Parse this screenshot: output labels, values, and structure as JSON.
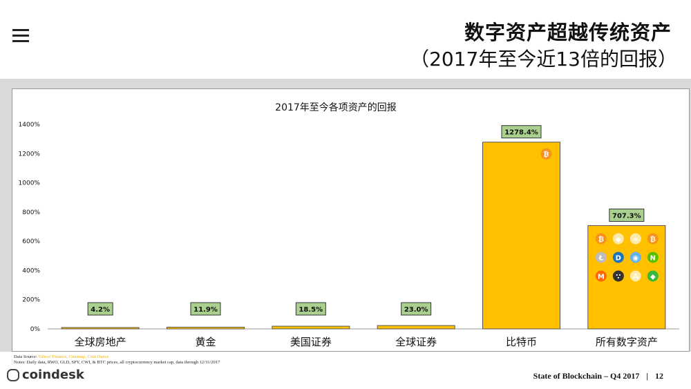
{
  "header": {
    "title": "数字资产超越传统资产",
    "subtitle": "（2017年至今近13倍的回报）"
  },
  "colors": {
    "bar": "#ffc000",
    "bar_stroke": "#555555",
    "label_bg": "#a9d08e"
  },
  "chart_data": {
    "type": "bar",
    "title": "2017年至今各项资产的回报",
    "categories": [
      "全球房地产",
      "黄金",
      "美国证券",
      "全球证券",
      "比特币",
      "所有数字资产"
    ],
    "values": [
      4.2,
      11.9,
      18.5,
      23.0,
      1278.4,
      707.3
    ],
    "value_labels": [
      "4.2%",
      "11.9%",
      "18.5%",
      "23.0%",
      "1278.4%",
      "707.3%"
    ],
    "y_ticks": [
      "0%",
      "200%",
      "400%",
      "600%",
      "800%",
      "1000%",
      "1200%",
      "1400%"
    ],
    "ylim": [
      0,
      1400
    ],
    "xlabel": "",
    "ylabel": "",
    "grid": false,
    "icons": {
      "bitcoin_bar": [
        "bitcoin-icon"
      ],
      "digital_assets_bar": [
        "bitcoin-icon",
        "ethereum-icon",
        "ripple-icon",
        "bitcoin-cash-icon",
        "litecoin-icon",
        "dash-icon",
        "nem-icon",
        "neo-icon",
        "monero-icon",
        "iota-icon",
        "cardano-icon",
        "ethereum-classic-icon"
      ]
    }
  },
  "notes": {
    "source_prefix": "Data Source:",
    "sources": "Yahoo! Finance, Coinmap, Coin Dance",
    "notes_text": "Notes: Daily data, RWO, GLD, SPY, CWI, & BTC prices, all cryptocurrency market cap, data through 12/31/2017"
  },
  "footer": {
    "logo": "coindesk",
    "report": "State of Blockchain – Q4 2017",
    "separator": "|",
    "page": "12"
  }
}
